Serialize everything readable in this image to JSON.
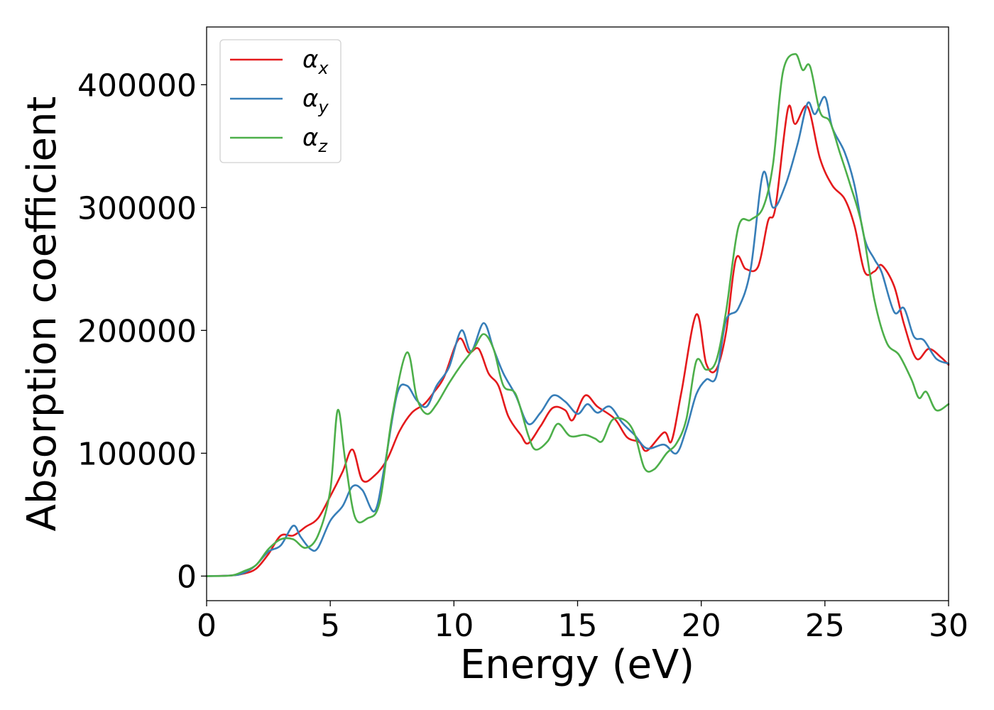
{
  "chart_data": {
    "type": "line",
    "title": "",
    "xlabel": "Energy (eV)",
    "ylabel": "Absorption coefficient",
    "xlim": [
      0,
      30
    ],
    "ylim": [
      -20000,
      447000
    ],
    "xticks": [
      0,
      5,
      10,
      15,
      20,
      25,
      30
    ],
    "xtick_labels": [
      "0",
      "5",
      "10",
      "15",
      "20",
      "25",
      "30"
    ],
    "yticks": [
      0,
      100000,
      200000,
      300000,
      400000
    ],
    "ytick_labels": [
      "0",
      "100000",
      "200000",
      "300000",
      "400000"
    ],
    "grid": false,
    "legend_position": "top-left",
    "series": [
      {
        "name": "α_x",
        "legend_symbol": "α",
        "legend_subscript": "x",
        "color": "#e41a1c",
        "points": [
          [
            0,
            0
          ],
          [
            1,
            500
          ],
          [
            1.5,
            2000
          ],
          [
            2,
            6000
          ],
          [
            2.5,
            18000
          ],
          [
            3,
            33000
          ],
          [
            3.5,
            33000
          ],
          [
            4,
            40000
          ],
          [
            4.5,
            47000
          ],
          [
            5,
            65000
          ],
          [
            5.5,
            85000
          ],
          [
            5.9,
            103000
          ],
          [
            6.3,
            78000
          ],
          [
            6.8,
            82000
          ],
          [
            7.3,
            95000
          ],
          [
            7.8,
            118000
          ],
          [
            8.3,
            133000
          ],
          [
            8.8,
            140000
          ],
          [
            9.2,
            150000
          ],
          [
            9.6,
            162000
          ],
          [
            10.2,
            193000
          ],
          [
            10.6,
            182000
          ],
          [
            11,
            185000
          ],
          [
            11.4,
            165000
          ],
          [
            11.8,
            155000
          ],
          [
            12.2,
            130000
          ],
          [
            12.7,
            115000
          ],
          [
            13,
            108000
          ],
          [
            13.5,
            122000
          ],
          [
            14,
            137000
          ],
          [
            14.5,
            135000
          ],
          [
            14.8,
            127000
          ],
          [
            15.3,
            147000
          ],
          [
            15.8,
            138000
          ],
          [
            16.5,
            128000
          ],
          [
            17,
            113000
          ],
          [
            17.5,
            109000
          ],
          [
            17.8,
            102000
          ],
          [
            18.5,
            117000
          ],
          [
            18.8,
            110000
          ],
          [
            19.2,
            150000
          ],
          [
            19.8,
            213000
          ],
          [
            20.2,
            173000
          ],
          [
            20.6,
            168000
          ],
          [
            21,
            198000
          ],
          [
            21.4,
            258000
          ],
          [
            21.8,
            250000
          ],
          [
            22.3,
            252000
          ],
          [
            22.7,
            289000
          ],
          [
            23,
            300000
          ],
          [
            23.5,
            380000
          ],
          [
            23.8,
            368000
          ],
          [
            24.3,
            382000
          ],
          [
            24.8,
            340000
          ],
          [
            25.3,
            318000
          ],
          [
            25.8,
            307000
          ],
          [
            26.2,
            285000
          ],
          [
            26.6,
            248000
          ],
          [
            27,
            248000
          ],
          [
            27.3,
            253000
          ],
          [
            27.8,
            236000
          ],
          [
            28.2,
            205000
          ],
          [
            28.7,
            177000
          ],
          [
            29.2,
            185000
          ],
          [
            29.7,
            178000
          ],
          [
            30,
            172000
          ]
        ]
      },
      {
        "name": "α_y",
        "legend_symbol": "α",
        "legend_subscript": "y",
        "color": "#377eb8",
        "points": [
          [
            0,
            0
          ],
          [
            1,
            500
          ],
          [
            1.5,
            2500
          ],
          [
            2,
            9000
          ],
          [
            2.5,
            20000
          ],
          [
            3,
            25000
          ],
          [
            3.5,
            41000
          ],
          [
            3.8,
            32000
          ],
          [
            4.2,
            22000
          ],
          [
            4.5,
            23000
          ],
          [
            5,
            45000
          ],
          [
            5.5,
            57000
          ],
          [
            5.9,
            73000
          ],
          [
            6.3,
            70000
          ],
          [
            6.8,
            53000
          ],
          [
            7.2,
            90000
          ],
          [
            7.7,
            148000
          ],
          [
            8.1,
            155000
          ],
          [
            8.5,
            143000
          ],
          [
            8.9,
            138000
          ],
          [
            9.3,
            155000
          ],
          [
            9.8,
            170000
          ],
          [
            10.3,
            200000
          ],
          [
            10.7,
            183000
          ],
          [
            11.2,
            206000
          ],
          [
            11.6,
            185000
          ],
          [
            12,
            165000
          ],
          [
            12.5,
            147000
          ],
          [
            13,
            124000
          ],
          [
            13.5,
            133000
          ],
          [
            14,
            147000
          ],
          [
            14.5,
            142000
          ],
          [
            15,
            132000
          ],
          [
            15.4,
            140000
          ],
          [
            15.8,
            133000
          ],
          [
            16.3,
            138000
          ],
          [
            16.8,
            125000
          ],
          [
            17.3,
            115000
          ],
          [
            17.8,
            104000
          ],
          [
            18.5,
            107000
          ],
          [
            19,
            100000
          ],
          [
            19.4,
            120000
          ],
          [
            19.8,
            148000
          ],
          [
            20.2,
            160000
          ],
          [
            20.6,
            162000
          ],
          [
            21,
            208000
          ],
          [
            21.5,
            218000
          ],
          [
            22,
            250000
          ],
          [
            22.5,
            328000
          ],
          [
            22.9,
            300000
          ],
          [
            23.4,
            318000
          ],
          [
            23.9,
            352000
          ],
          [
            24.3,
            385000
          ],
          [
            24.6,
            376000
          ],
          [
            25,
            390000
          ],
          [
            25.3,
            365000
          ],
          [
            25.8,
            345000
          ],
          [
            26.2,
            318000
          ],
          [
            26.6,
            275000
          ],
          [
            27,
            258000
          ],
          [
            27.3,
            247000
          ],
          [
            27.8,
            215000
          ],
          [
            28.2,
            218000
          ],
          [
            28.6,
            195000
          ],
          [
            29,
            192000
          ],
          [
            29.5,
            177000
          ],
          [
            30,
            173000
          ]
        ]
      },
      {
        "name": "α_z",
        "legend_symbol": "α",
        "legend_subscript": "z",
        "color": "#4daf4a",
        "points": [
          [
            0,
            0
          ],
          [
            1,
            500
          ],
          [
            1.5,
            4000
          ],
          [
            2,
            9000
          ],
          [
            2.5,
            22000
          ],
          [
            3,
            30000
          ],
          [
            3.5,
            30000
          ],
          [
            4,
            23000
          ],
          [
            4.5,
            33000
          ],
          [
            5,
            70000
          ],
          [
            5.3,
            135000
          ],
          [
            5.6,
            95000
          ],
          [
            6,
            48000
          ],
          [
            6.5,
            47000
          ],
          [
            7,
            60000
          ],
          [
            7.5,
            130000
          ],
          [
            8.1,
            182000
          ],
          [
            8.5,
            145000
          ],
          [
            8.9,
            132000
          ],
          [
            9.3,
            140000
          ],
          [
            9.8,
            157000
          ],
          [
            10.3,
            172000
          ],
          [
            10.8,
            185000
          ],
          [
            11.2,
            197000
          ],
          [
            11.6,
            185000
          ],
          [
            12,
            155000
          ],
          [
            12.5,
            148000
          ],
          [
            13,
            115000
          ],
          [
            13.3,
            103000
          ],
          [
            13.8,
            110000
          ],
          [
            14.2,
            124000
          ],
          [
            14.7,
            114000
          ],
          [
            15.3,
            115000
          ],
          [
            15.7,
            112000
          ],
          [
            16,
            110000
          ],
          [
            16.4,
            127000
          ],
          [
            16.9,
            127000
          ],
          [
            17.3,
            116000
          ],
          [
            17.7,
            88000
          ],
          [
            18.1,
            87000
          ],
          [
            18.6,
            100000
          ],
          [
            19,
            108000
          ],
          [
            19.4,
            128000
          ],
          [
            19.8,
            175000
          ],
          [
            20.2,
            168000
          ],
          [
            20.6,
            175000
          ],
          [
            21,
            215000
          ],
          [
            21.5,
            284000
          ],
          [
            22,
            290000
          ],
          [
            22.5,
            300000
          ],
          [
            22.9,
            335000
          ],
          [
            23.3,
            410000
          ],
          [
            23.8,
            425000
          ],
          [
            24.1,
            412000
          ],
          [
            24.4,
            415000
          ],
          [
            24.8,
            378000
          ],
          [
            25.2,
            370000
          ],
          [
            25.6,
            345000
          ],
          [
            26,
            320000
          ],
          [
            26.5,
            285000
          ],
          [
            27,
            225000
          ],
          [
            27.5,
            190000
          ],
          [
            28,
            180000
          ],
          [
            28.5,
            160000
          ],
          [
            28.8,
            145000
          ],
          [
            29.1,
            150000
          ],
          [
            29.5,
            135000
          ],
          [
            30,
            140000
          ]
        ]
      }
    ]
  }
}
